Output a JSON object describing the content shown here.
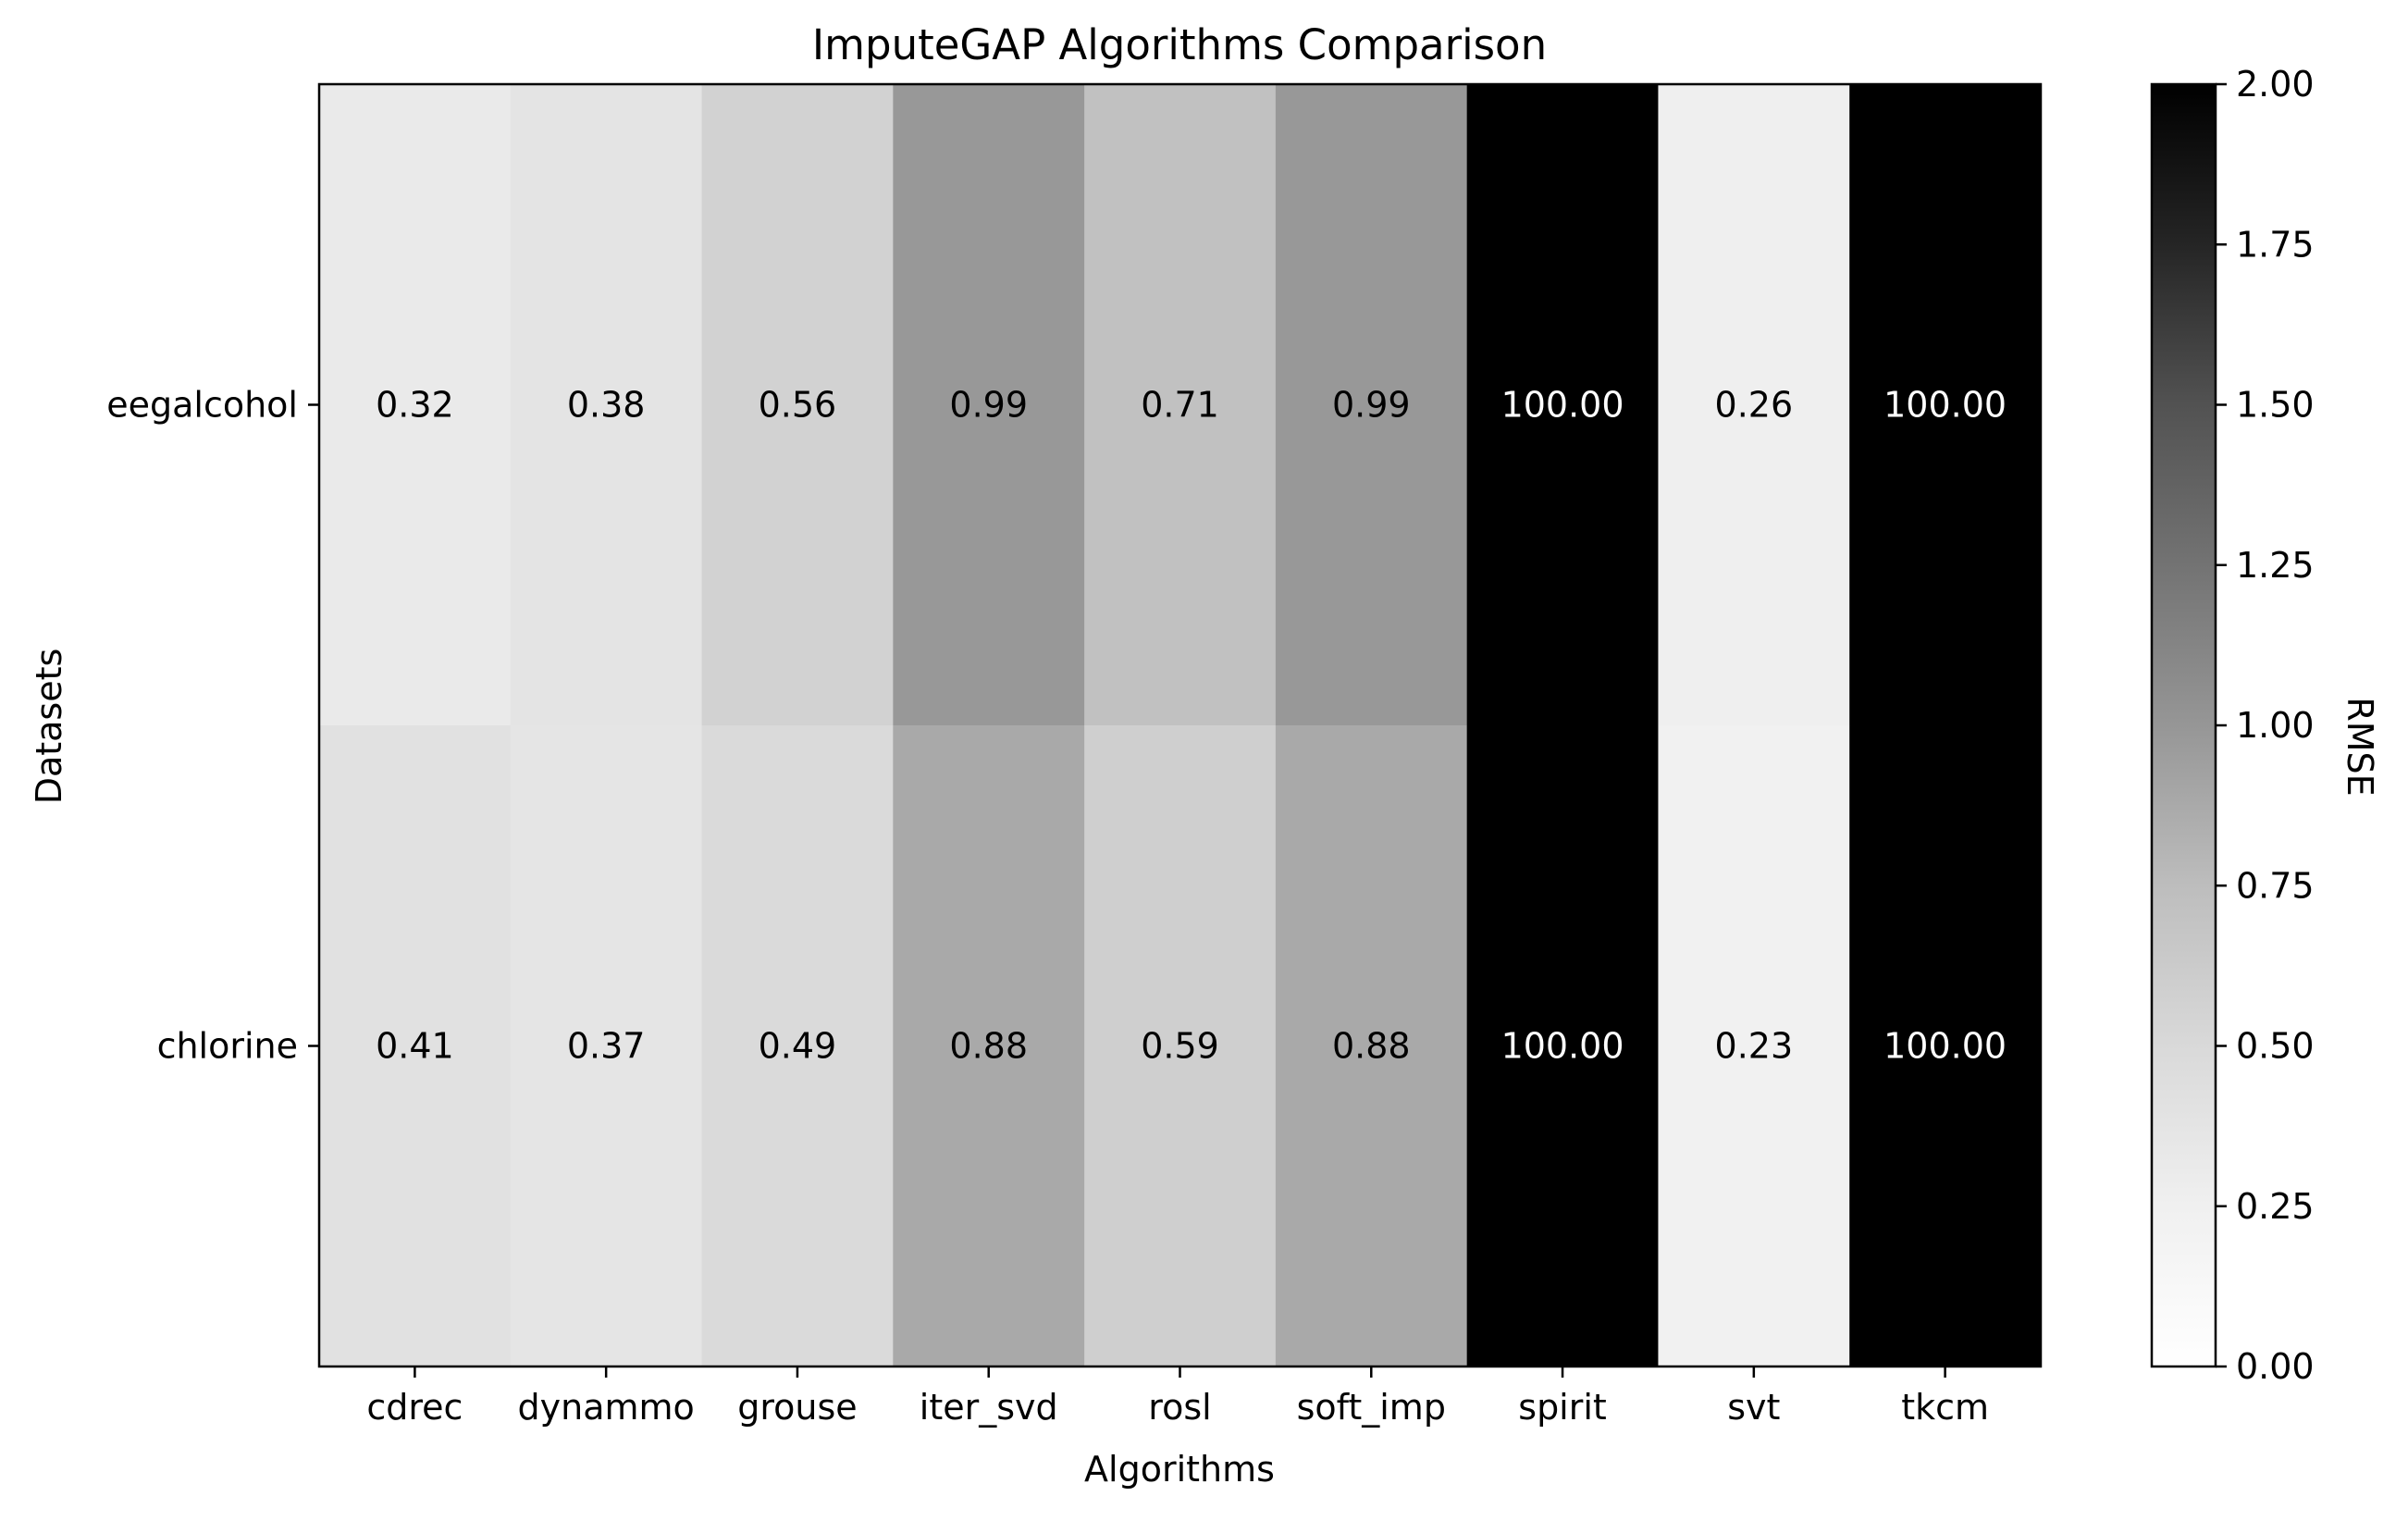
{
  "chart_data": {
    "type": "heatmap",
    "title": "ImputeGAP Algorithms Comparison",
    "xlabel": "Algorithms",
    "ylabel": "Datasets",
    "x_categories": [
      "cdrec",
      "dynammo",
      "grouse",
      "iter_svd",
      "rosl",
      "soft_imp",
      "spirit",
      "svt",
      "tkcm"
    ],
    "y_categories": [
      "eegalcohol",
      "chlorine"
    ],
    "values": [
      [
        0.32,
        0.38,
        0.56,
        0.99,
        0.71,
        0.99,
        100.0,
        0.26,
        100.0
      ],
      [
        0.41,
        0.37,
        0.49,
        0.88,
        0.59,
        0.88,
        100.0,
        0.23,
        100.0
      ]
    ],
    "cell_labels": [
      [
        "0.32",
        "0.38",
        "0.56",
        "0.99",
        "0.71",
        "0.99",
        "100.00",
        "0.26",
        "100.00"
      ],
      [
        "0.41",
        "0.37",
        "0.49",
        "0.88",
        "0.59",
        "0.88",
        "100.00",
        "0.23",
        "100.00"
      ]
    ],
    "colorbar": {
      "label": "RMSE",
      "range": [
        0,
        2
      ],
      "ticks": [
        0.0,
        0.25,
        0.5,
        0.75,
        1.0,
        1.25,
        1.5,
        1.75,
        2.0
      ],
      "tick_labels": [
        "0.00",
        "0.25",
        "0.50",
        "0.75",
        "1.00",
        "1.25",
        "1.50",
        "1.75",
        "2.00"
      ],
      "colormap": "Greys"
    },
    "grid": false
  }
}
